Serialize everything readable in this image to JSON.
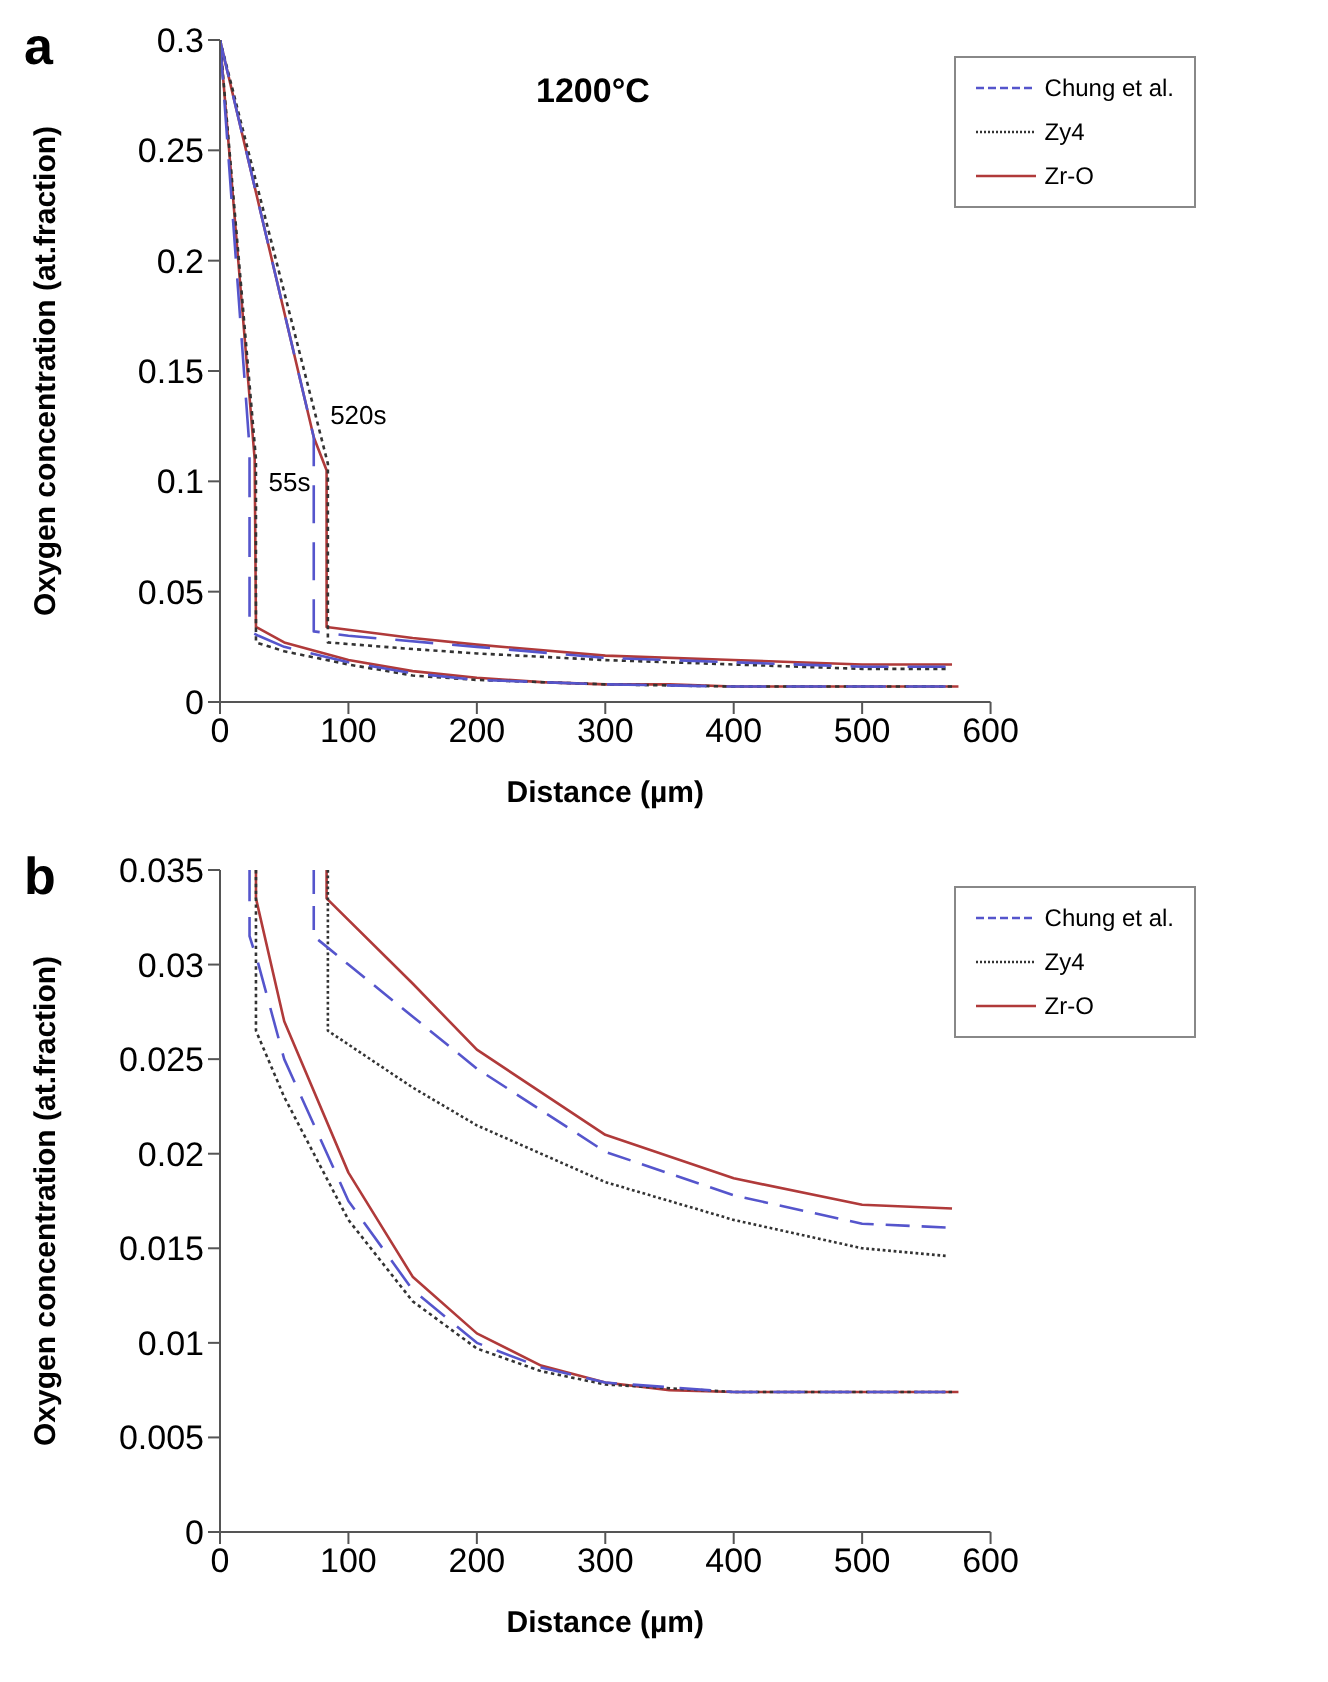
{
  "chart_data": [
    {
      "type": "line",
      "title": "a",
      "xlabel": "Distance (µm)",
      "ylabel": "Oxygen concentration (at.fraction)",
      "xlim": [
        0,
        600
      ],
      "xticks": [
        0,
        100,
        200,
        300,
        400,
        500,
        600
      ],
      "ylim": [
        0,
        0.3
      ],
      "yticks": [
        0,
        0.05,
        0.1,
        0.15,
        0.2,
        0.25,
        0.3
      ],
      "legend": "top right",
      "marker": "none",
      "annotations": [
        "1200°C",
        {
          "text": "520s",
          "x": 78,
          "y": 0.13
        },
        {
          "text": "55s",
          "x": 30,
          "y": 0.1
        }
      ],
      "series": [
        {
          "name": "Chung et al.",
          "color": "#5555cc",
          "line_style": "dashed",
          "x": [
            0,
            23,
            23,
            30,
            50,
            100,
            150,
            200,
            250,
            300,
            400,
            565
          ],
          "values": [
            0.3,
            0.115,
            0.032,
            0.03,
            0.025,
            0.018,
            0.013,
            0.01,
            0.009,
            0.008,
            0.007,
            0.007
          ]
        },
        {
          "name": "Zy4",
          "color": "#333333",
          "line_style": "dotted",
          "x": [
            0,
            28,
            28,
            50,
            100,
            150,
            200,
            250,
            300,
            400,
            570
          ],
          "values": [
            0.3,
            0.11,
            0.027,
            0.023,
            0.017,
            0.012,
            0.01,
            0.009,
            0.008,
            0.007,
            0.007
          ]
        },
        {
          "name": "Zr-O",
          "color": "#b03a3a",
          "line_style": "solid",
          "x": [
            0,
            27,
            28,
            50,
            100,
            150,
            200,
            250,
            300,
            350,
            400,
            575
          ],
          "values": [
            0.3,
            0.11,
            0.034,
            0.027,
            0.019,
            0.014,
            0.011,
            0.009,
            0.008,
            0.008,
            0.007,
            0.007
          ]
        },
        {
          "color": "#5555cc",
          "line_style": "dashed",
          "x": [
            0,
            73,
            73,
            100,
            200,
            300,
            400,
            500,
            565
          ],
          "values": [
            0.3,
            0.12,
            0.032,
            0.03,
            0.025,
            0.02,
            0.018,
            0.016,
            0.016
          ]
        },
        {
          "color": "#333333",
          "line_style": "dotted",
          "x": [
            0,
            84,
            84,
            150,
            200,
            300,
            400,
            500,
            565
          ],
          "values": [
            0.3,
            0.108,
            0.027,
            0.024,
            0.022,
            0.019,
            0.017,
            0.015,
            0.015
          ]
        },
        {
          "color": "#b03a3a",
          "line_style": "solid",
          "x": [
            0,
            73,
            83,
            83,
            150,
            200,
            300,
            400,
            500,
            570
          ],
          "values": [
            0.3,
            0.12,
            0.105,
            0.034,
            0.029,
            0.026,
            0.021,
            0.019,
            0.017,
            0.017
          ]
        }
      ]
    },
    {
      "type": "line",
      "title": "b",
      "xlabel": "Distance (µm)",
      "ylabel": "Oxygen concentration (at.fraction)",
      "xlim": [
        0,
        600
      ],
      "xticks": [
        0,
        100,
        200,
        300,
        400,
        500,
        600
      ],
      "ylim": [
        0,
        0.035
      ],
      "yticks": [
        0,
        0.005,
        0.01,
        0.015,
        0.02,
        0.025,
        0.03,
        0.035
      ],
      "legend": "top right",
      "marker": "none",
      "series": [
        {
          "name": "Chung et al.",
          "color": "#5555cc",
          "line_style": "dashed",
          "x": [
            23,
            23,
            30,
            50,
            100,
            150,
            200,
            250,
            300,
            400,
            565
          ],
          "values": [
            0.035,
            0.0315,
            0.03,
            0.025,
            0.0175,
            0.0128,
            0.01,
            0.0087,
            0.0079,
            0.0074,
            0.0074
          ]
        },
        {
          "name": "Zy4",
          "color": "#333333",
          "line_style": "dotted",
          "x": [
            28,
            28,
            50,
            100,
            150,
            200,
            250,
            300,
            400,
            570
          ],
          "values": [
            0.035,
            0.0265,
            0.023,
            0.0165,
            0.0122,
            0.0097,
            0.0085,
            0.0078,
            0.0074,
            0.0074
          ]
        },
        {
          "name": "Zr-O",
          "color": "#b03a3a",
          "line_style": "solid",
          "x": [
            28,
            28,
            50,
            100,
            150,
            200,
            250,
            300,
            350,
            400,
            575
          ],
          "values": [
            0.035,
            0.0335,
            0.027,
            0.019,
            0.0135,
            0.0105,
            0.0088,
            0.0079,
            0.0075,
            0.0074,
            0.0074
          ]
        },
        {
          "color": "#5555cc",
          "line_style": "dashed",
          "x": [
            73,
            73,
            100,
            200,
            300,
            400,
            500,
            565
          ],
          "values": [
            0.035,
            0.0315,
            0.03,
            0.0245,
            0.0201,
            0.0178,
            0.0163,
            0.0161
          ]
        },
        {
          "color": "#333333",
          "line_style": "dotted",
          "x": [
            84,
            84,
            150,
            200,
            300,
            400,
            500,
            565
          ],
          "values": [
            0.035,
            0.0265,
            0.0235,
            0.0215,
            0.0185,
            0.0165,
            0.015,
            0.0146
          ]
        },
        {
          "color": "#b03a3a",
          "line_style": "solid",
          "x": [
            83,
            83,
            150,
            200,
            300,
            400,
            500,
            570
          ],
          "values": [
            0.035,
            0.0335,
            0.029,
            0.0255,
            0.021,
            0.0187,
            0.0173,
            0.0171
          ]
        }
      ]
    }
  ]
}
